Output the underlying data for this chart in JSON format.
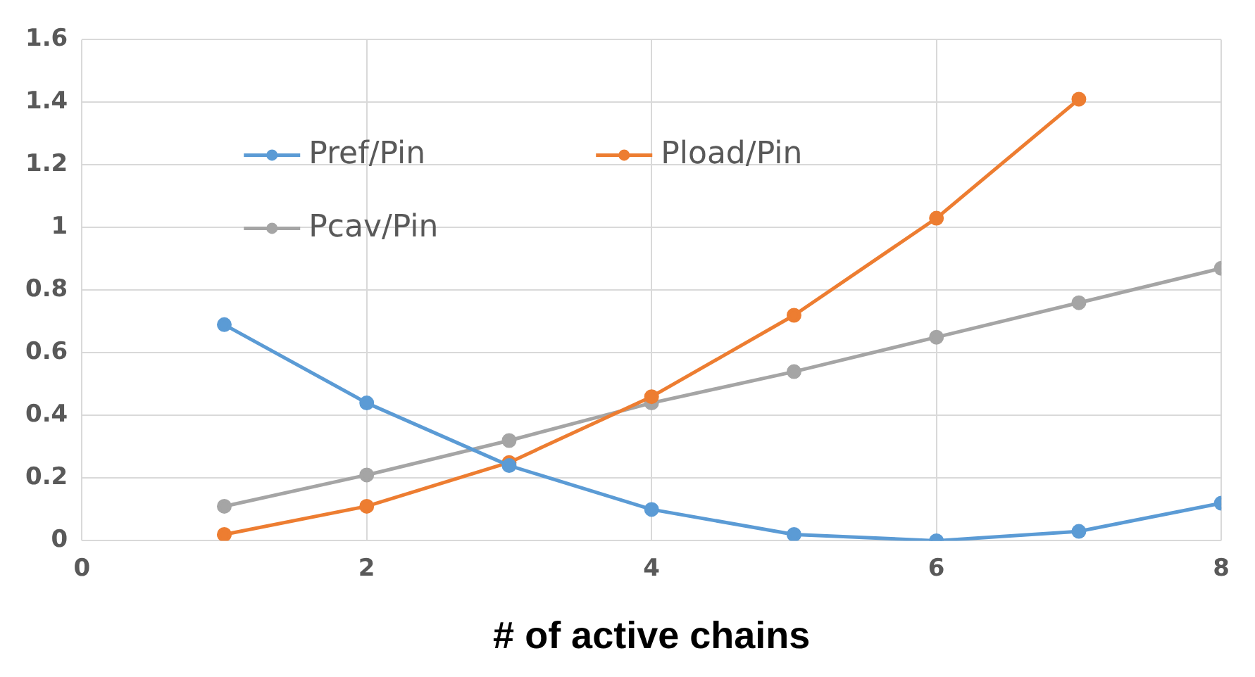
{
  "chart_data": {
    "type": "line",
    "xlabel": "# of active chains",
    "xlim": [
      0,
      8
    ],
    "xticks": [
      0,
      2,
      4,
      6,
      8
    ],
    "ylim": [
      0,
      1.6
    ],
    "yticks": [
      0,
      0.2,
      0.4,
      0.6,
      0.8,
      1,
      1.2,
      1.4,
      1.6
    ],
    "grid": true,
    "legend": "top left",
    "marker": "circle",
    "line_style": "solid",
    "series": [
      {
        "name": "Pref/Pin",
        "color": "#5b9bd5",
        "x": [
          1,
          2,
          3,
          4,
          5,
          6,
          7,
          8
        ],
        "values": [
          0.69,
          0.44,
          0.24,
          0.1,
          0.02,
          0,
          0.03,
          0.12
        ]
      },
      {
        "name": "Pload/Pin",
        "color": "#ed7d31",
        "x": [
          1,
          2,
          3,
          4,
          5,
          6,
          7
        ],
        "values": [
          0.02,
          0.11,
          0.25,
          0.46,
          0.72,
          1.03,
          1.41
        ]
      },
      {
        "name": "Pcav/Pin",
        "color": "#a5a5a5",
        "x": [
          1,
          2,
          3,
          4,
          5,
          6,
          7,
          8
        ],
        "values": [
          0.11,
          0.21,
          0.32,
          0.44,
          0.54,
          0.65,
          0.76,
          0.87
        ]
      }
    ]
  }
}
